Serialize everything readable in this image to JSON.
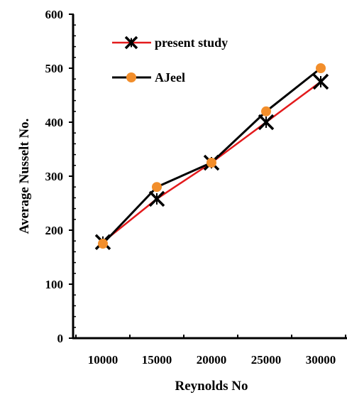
{
  "chart_data": {
    "type": "line",
    "x": [
      10000,
      15000,
      20000,
      25000,
      30000
    ],
    "xlabel": "Reynolds No",
    "ylabel": "Average Nusselt No.",
    "ylim": [
      0,
      600
    ],
    "yticks": [
      0,
      100,
      200,
      300,
      400,
      500,
      600
    ],
    "xtick_labels": [
      "10000",
      "15000",
      "20000",
      "25000",
      "30000"
    ],
    "ytick_labels": [
      "0",
      "100",
      "200",
      "300",
      "400",
      "500",
      "600"
    ],
    "grid": false,
    "legend_position": "top-left",
    "series": [
      {
        "name": "present study",
        "values": [
          178,
          258,
          325,
          400,
          475
        ],
        "line_color": "#e31a1c",
        "marker": "asterisk",
        "marker_color": "#000000"
      },
      {
        "name": "AJeel",
        "values": [
          175,
          280,
          325,
          420,
          500
        ],
        "line_color": "#000000",
        "marker": "circle",
        "marker_color": "#f28e2b"
      }
    ]
  }
}
